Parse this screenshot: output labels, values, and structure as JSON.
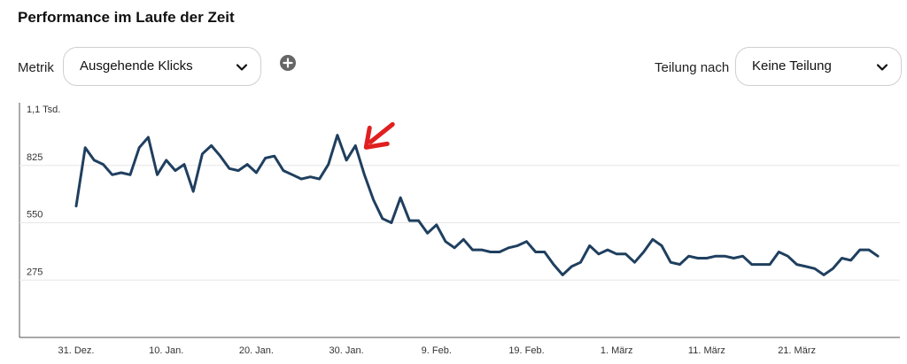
{
  "header": {
    "title": "Performance im Laufe der Zeit"
  },
  "controls": {
    "metric_label": "Metrik",
    "metric_value": "Ausgehende Klicks",
    "split_label": "Teilung nach",
    "split_value": "Keine Teilung",
    "icons": {
      "chevron": "chevron-down-icon",
      "add": "plus-circle-icon"
    }
  },
  "chart_data": {
    "type": "line",
    "y_ticks": [
      {
        "value": 275,
        "label": "275"
      },
      {
        "value": 550,
        "label": "550"
      },
      {
        "value": 825,
        "label": "825"
      },
      {
        "value": 1100,
        "label": "1,1 Tsd."
      }
    ],
    "ylim": [
      0,
      1100
    ],
    "grid": true,
    "x_tick_labels": [
      "31. Dez.",
      "10. Jan.",
      "20. Jan.",
      "30. Jan.",
      "9. Feb.",
      "19. Feb.",
      "1. März",
      "11. März",
      "21. März"
    ],
    "x_start_day": 0,
    "x_tick_step_days": 10,
    "series": [
      {
        "color": "#1f3f5f",
        "values": [
          630,
          910,
          850,
          830,
          780,
          790,
          780,
          910,
          960,
          780,
          850,
          800,
          830,
          700,
          880,
          920,
          870,
          810,
          800,
          830,
          790,
          860,
          870,
          800,
          780,
          760,
          770,
          760,
          830,
          970,
          850,
          920,
          780,
          660,
          570,
          550,
          670,
          560,
          560,
          500,
          540,
          460,
          430,
          470,
          420,
          420,
          410,
          410,
          430,
          440,
          460,
          410,
          410,
          350,
          300,
          340,
          360,
          440,
          400,
          420,
          400,
          400,
          360,
          410,
          470,
          440,
          360,
          350,
          390,
          380,
          380,
          390,
          390,
          380,
          390,
          350,
          350,
          350,
          410,
          390,
          350,
          340,
          330,
          300,
          330,
          380,
          370,
          420,
          420,
          390
        ]
      }
    ],
    "annotation": {
      "type": "arrow",
      "color": "#e02020",
      "at_index": 31
    }
  }
}
